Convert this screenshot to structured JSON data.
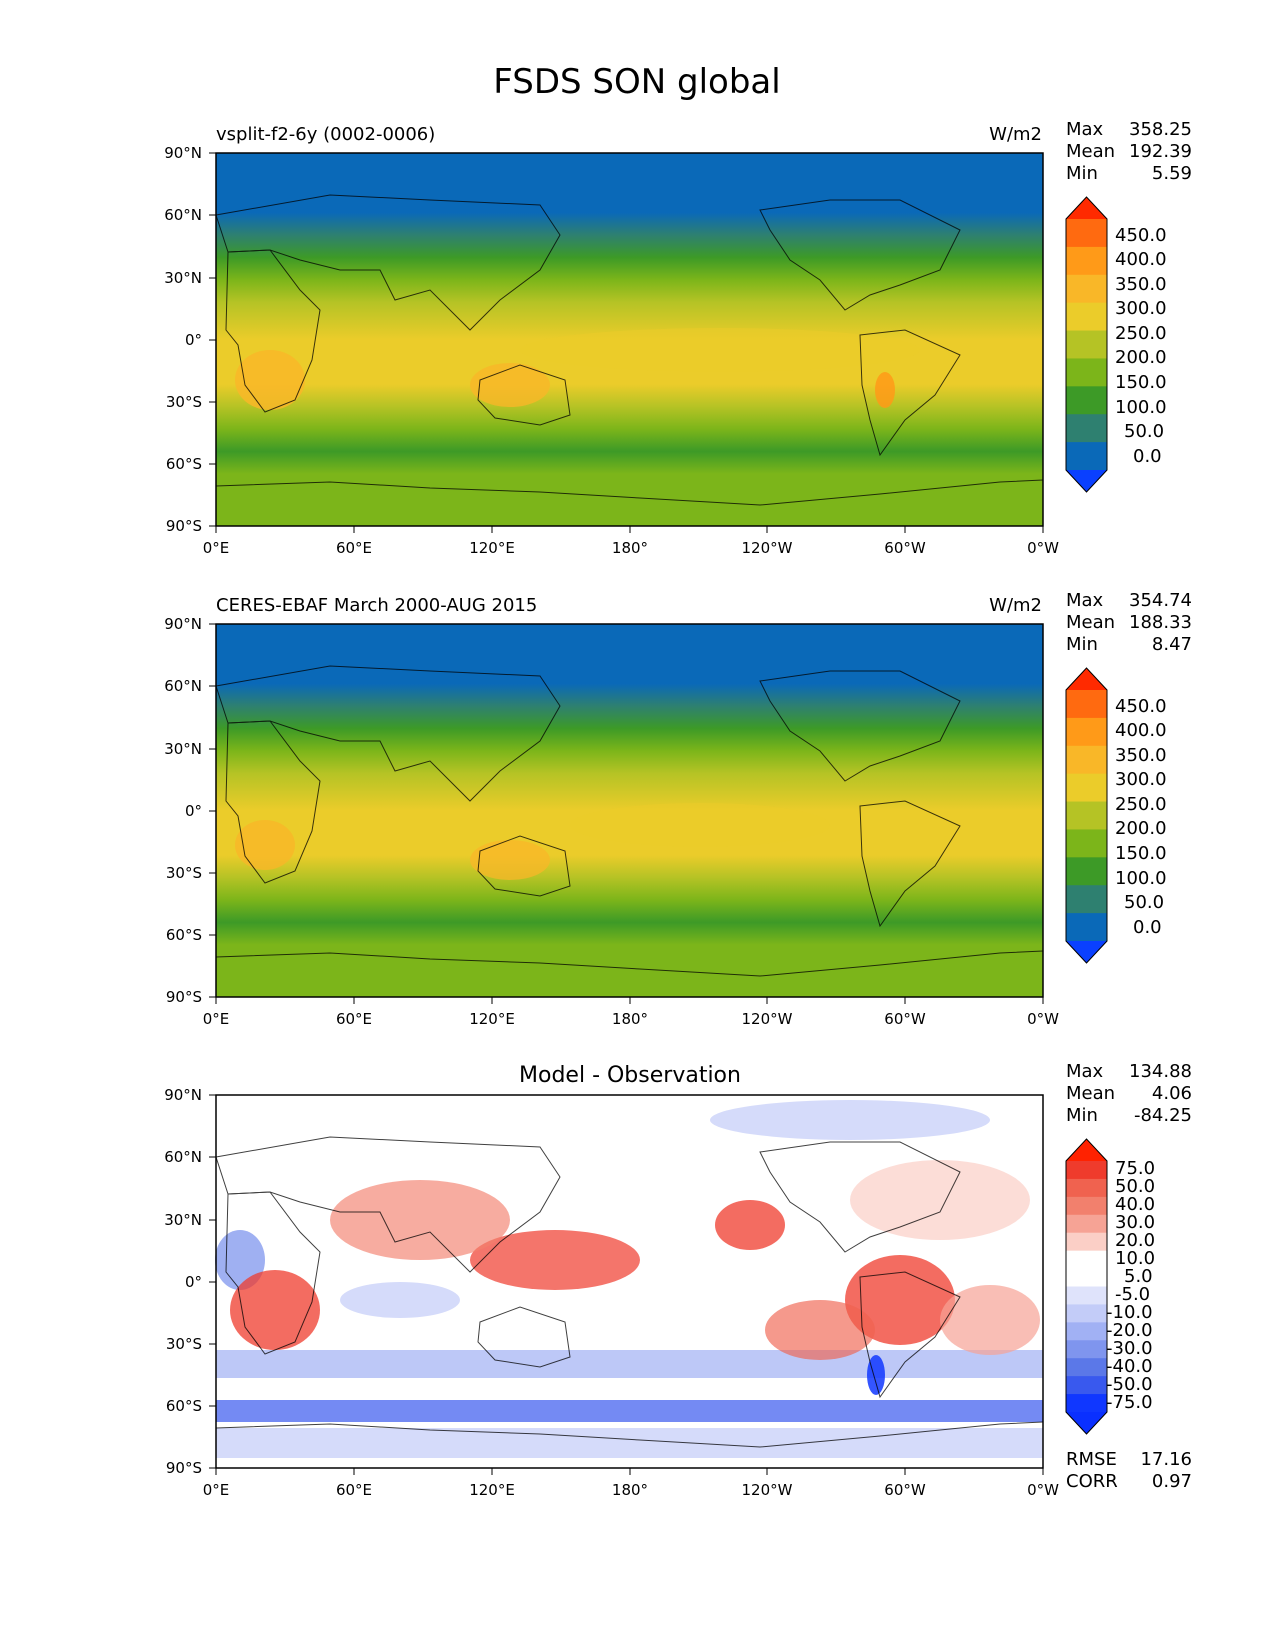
{
  "figure": {
    "title": "FSDS SON global"
  },
  "axes": {
    "lat_ticks": [
      "90°N",
      "60°N",
      "30°N",
      "0°",
      "30°S",
      "60°S",
      "90°S"
    ],
    "lon_ticks": [
      "0°E",
      "60°E",
      "120°E",
      "180°",
      "120°W",
      "60°W",
      "0°W"
    ]
  },
  "panels": [
    {
      "id": "model",
      "left_title": "vsplit-f2-6y (0002-0006)",
      "center_title": "",
      "units": "W/m2",
      "stats": {
        "max_label": "Max",
        "max": "358.25",
        "mean_label": "Mean",
        "mean": "192.39",
        "min_label": "Min",
        "min": "5.59"
      },
      "colorbar_labels": [
        "450.0",
        "400.0",
        "350.0",
        "300.0",
        "250.0",
        "200.0",
        "150.0",
        "100.0",
        "50.0",
        "0.0"
      ]
    },
    {
      "id": "obs",
      "left_title": "CERES-EBAF March 2000-AUG 2015",
      "center_title": "",
      "units": "W/m2",
      "stats": {
        "max_label": "Max",
        "max": "354.74",
        "mean_label": "Mean",
        "mean": "188.33",
        "min_label": "Min",
        "min": "8.47"
      },
      "colorbar_labels": [
        "450.0",
        "400.0",
        "350.0",
        "300.0",
        "250.0",
        "200.0",
        "150.0",
        "100.0",
        "50.0",
        "0.0"
      ]
    },
    {
      "id": "diff",
      "left_title": "",
      "center_title": "Model - Observation",
      "units": "",
      "stats": {
        "max_label": "Max",
        "max": "134.88",
        "mean_label": "Mean",
        "mean": "4.06",
        "min_label": "Min",
        "min": "-84.25"
      },
      "colorbar_labels": [
        "75.0",
        "50.0",
        "40.0",
        "30.0",
        "20.0",
        "10.0",
        "5.0",
        "-5.0",
        "-10.0",
        "-20.0",
        "-30.0",
        "-40.0",
        "-50.0",
        "-75.0"
      ],
      "extra": {
        "rmse_label": "RMSE",
        "rmse": "17.16",
        "corr_label": "CORR",
        "corr": "0.97"
      }
    }
  ],
  "colors": {
    "abs_cbar": [
      "#ff2a00",
      "#ff6a10",
      "#ff9a18",
      "#f9b728",
      "#ebcc2a",
      "#b5c325",
      "#7cb51a",
      "#3d9a27",
      "#2e8070",
      "#0a69b8",
      "#0a40ff"
    ],
    "diff_cbar": [
      "#ff2200",
      "#ef3b2c",
      "#f0624f",
      "#f2806d",
      "#f6a395",
      "#fbcfc6",
      "#ffffff",
      "#ffffff",
      "#dfe3fb",
      "#c3ccf8",
      "#a1b1f4",
      "#7f95ee",
      "#5b78e8",
      "#3959ee",
      "#1037ff",
      "#0a30ff"
    ]
  }
}
